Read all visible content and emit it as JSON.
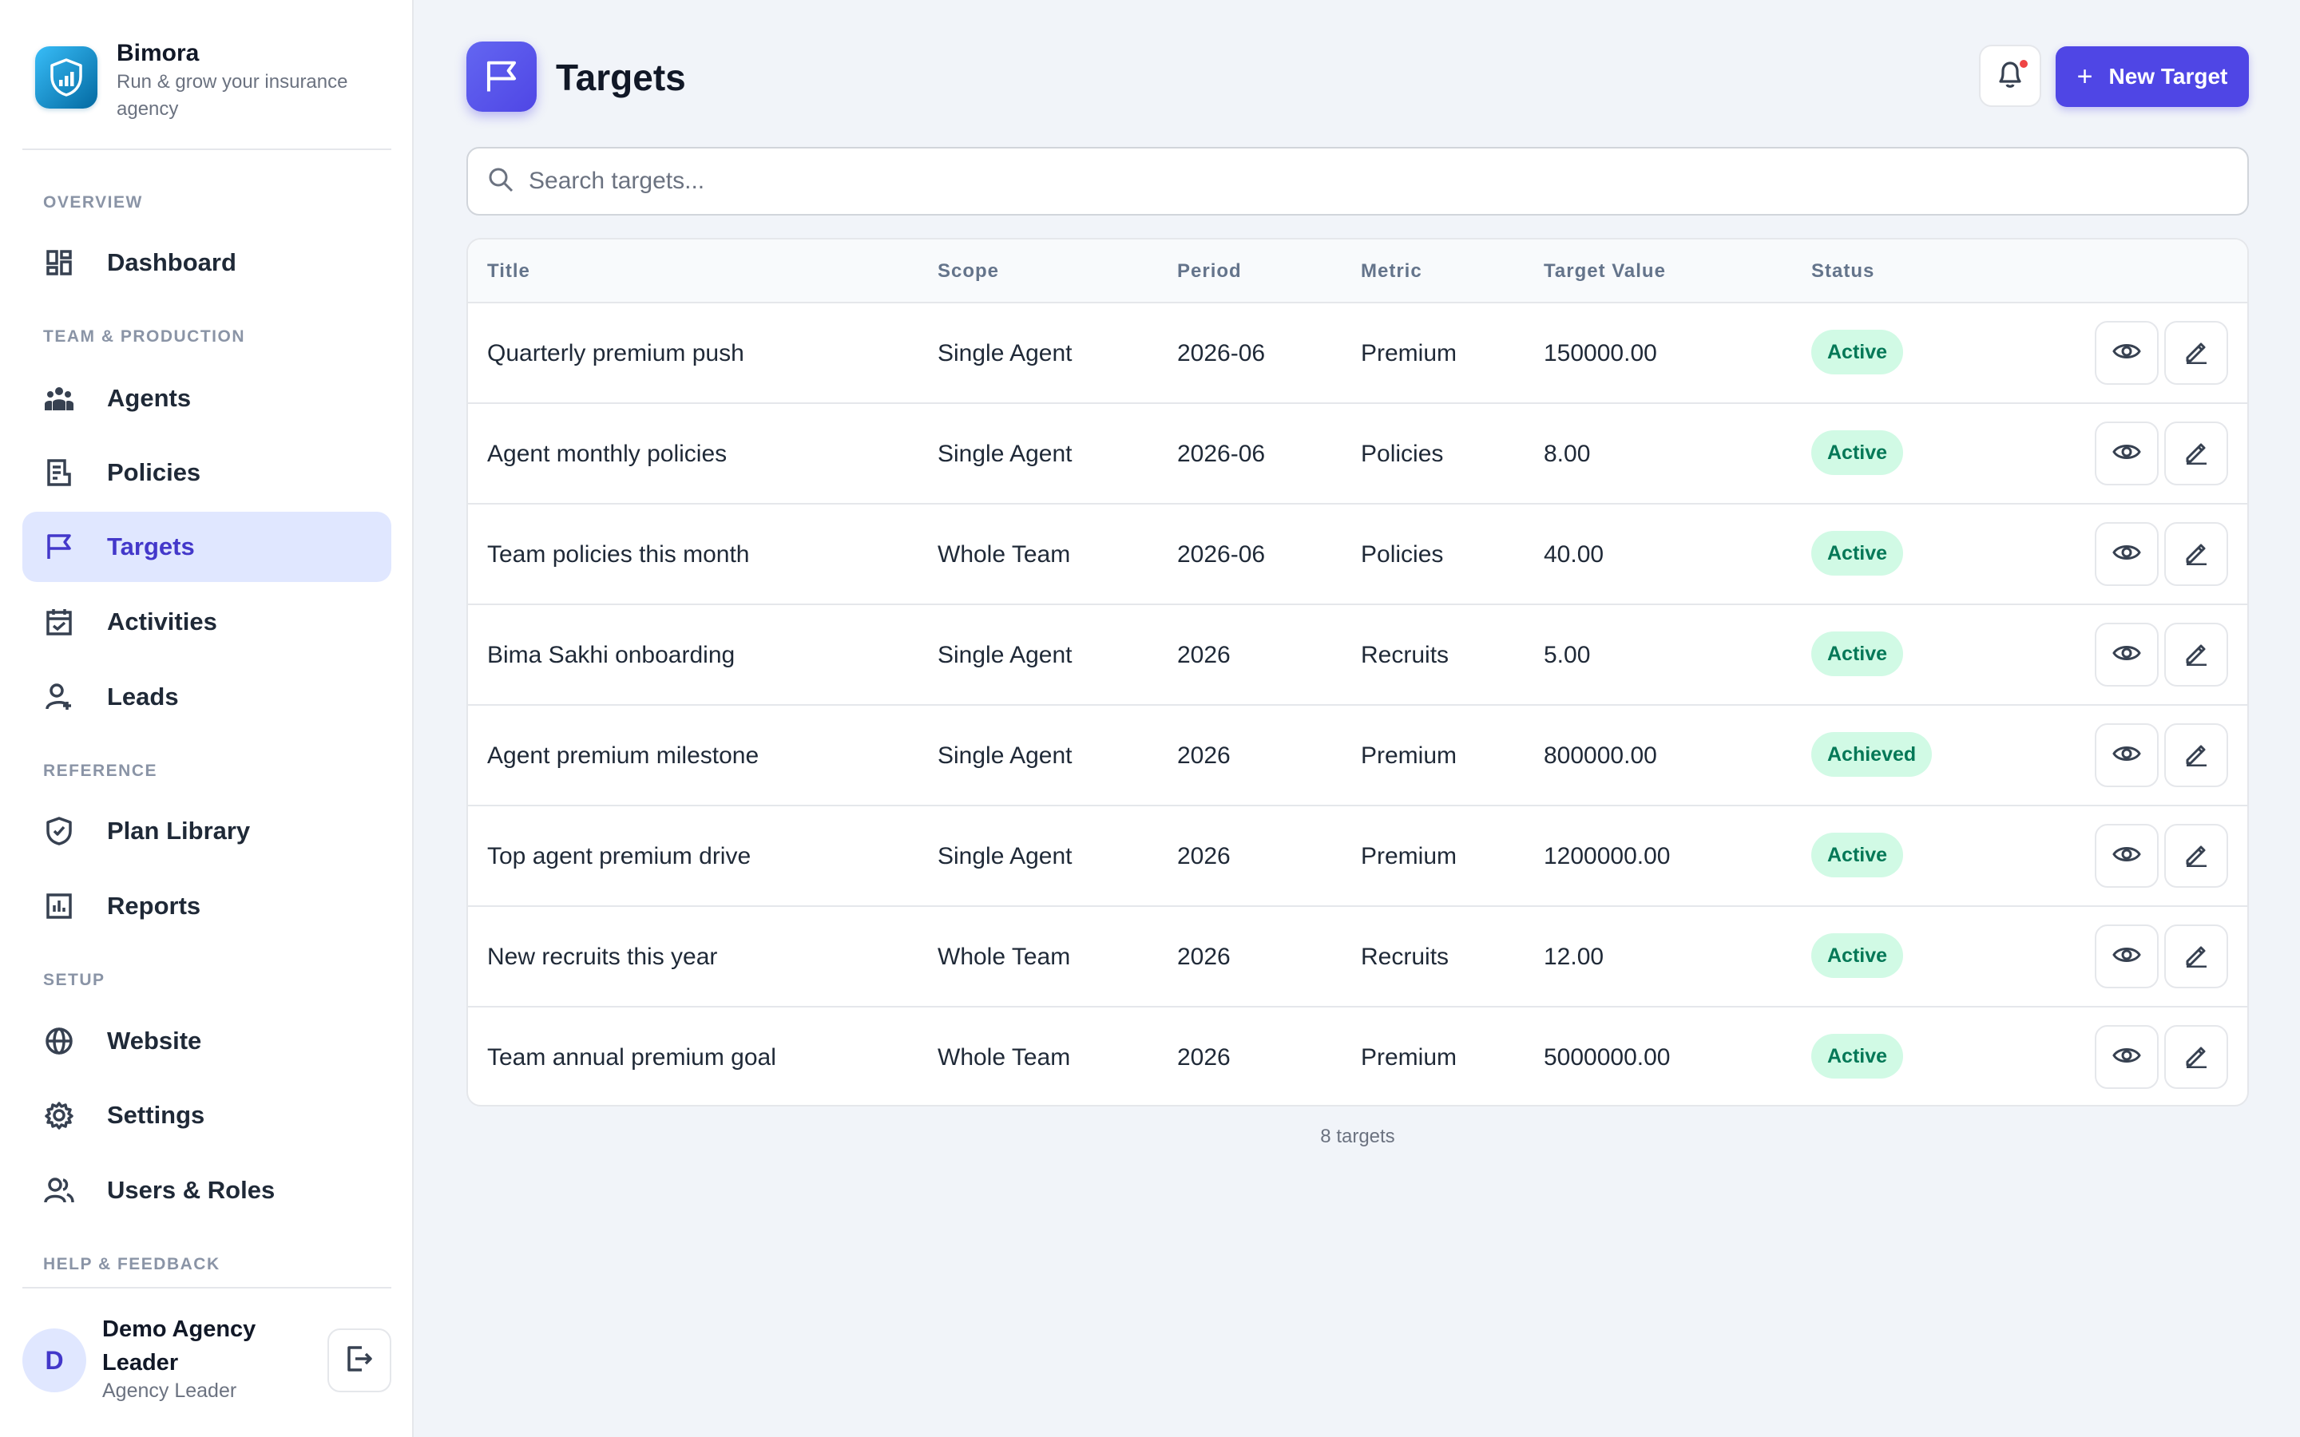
{
  "brand": {
    "name": "Bimora",
    "tagline": "Run & grow your insurance agency"
  },
  "sidebar": {
    "sections": [
      {
        "label": "Overview"
      },
      {
        "label": "Team & Production"
      },
      {
        "label": "Reference"
      },
      {
        "label": "Setup"
      },
      {
        "label": "Help & Feedback"
      }
    ],
    "items": [
      {
        "label": "Dashboard",
        "icon": "dashboard-icon"
      },
      {
        "label": "Agents",
        "icon": "agents-icon"
      },
      {
        "label": "Policies",
        "icon": "policies-icon"
      },
      {
        "label": "Targets",
        "icon": "flag-icon",
        "active": true
      },
      {
        "label": "Activities",
        "icon": "calendar-check-icon"
      },
      {
        "label": "Leads",
        "icon": "user-plus-icon"
      },
      {
        "label": "Plan Library",
        "icon": "shield-check-icon"
      },
      {
        "label": "Reports",
        "icon": "bar-chart-icon"
      },
      {
        "label": "Website",
        "icon": "globe-icon"
      },
      {
        "label": "Settings",
        "icon": "gear-icon"
      },
      {
        "label": "Users & Roles",
        "icon": "users-icon"
      }
    ]
  },
  "user": {
    "initial": "D",
    "name": "Demo Agency Leader",
    "role": "Agency Leader"
  },
  "header": {
    "title": "Targets",
    "new_button_label": "New Target"
  },
  "search": {
    "placeholder": "Search targets..."
  },
  "table": {
    "columns": [
      "Title",
      "Scope",
      "Period",
      "Metric",
      "Target Value",
      "Status"
    ],
    "rows": [
      {
        "title": "Quarterly premium push",
        "scope": "Single Agent",
        "period": "2026-06",
        "metric": "Premium",
        "value": "150000.00",
        "status": "Active"
      },
      {
        "title": "Agent monthly policies",
        "scope": "Single Agent",
        "period": "2026-06",
        "metric": "Policies",
        "value": "8.00",
        "status": "Active"
      },
      {
        "title": "Team policies this month",
        "scope": "Whole Team",
        "period": "2026-06",
        "metric": "Policies",
        "value": "40.00",
        "status": "Active"
      },
      {
        "title": "Bima Sakhi onboarding",
        "scope": "Single Agent",
        "period": "2026",
        "metric": "Recruits",
        "value": "5.00",
        "status": "Active"
      },
      {
        "title": "Agent premium milestone",
        "scope": "Single Agent",
        "period": "2026",
        "metric": "Premium",
        "value": "800000.00",
        "status": "Achieved"
      },
      {
        "title": "Top agent premium drive",
        "scope": "Single Agent",
        "period": "2026",
        "metric": "Premium",
        "value": "1200000.00",
        "status": "Active"
      },
      {
        "title": "New recruits this year",
        "scope": "Whole Team",
        "period": "2026",
        "metric": "Recruits",
        "value": "12.00",
        "status": "Active"
      },
      {
        "title": "Team annual premium goal",
        "scope": "Whole Team",
        "period": "2026",
        "metric": "Premium",
        "value": "5000000.00",
        "status": "Active"
      }
    ],
    "footer": "8 targets"
  },
  "colors": {
    "accent": "#4f46e5",
    "active_bg": "#e0e7ff",
    "badge_bg": "#d1fae5",
    "badge_text": "#047857",
    "notification_dot": "#ef4444"
  }
}
